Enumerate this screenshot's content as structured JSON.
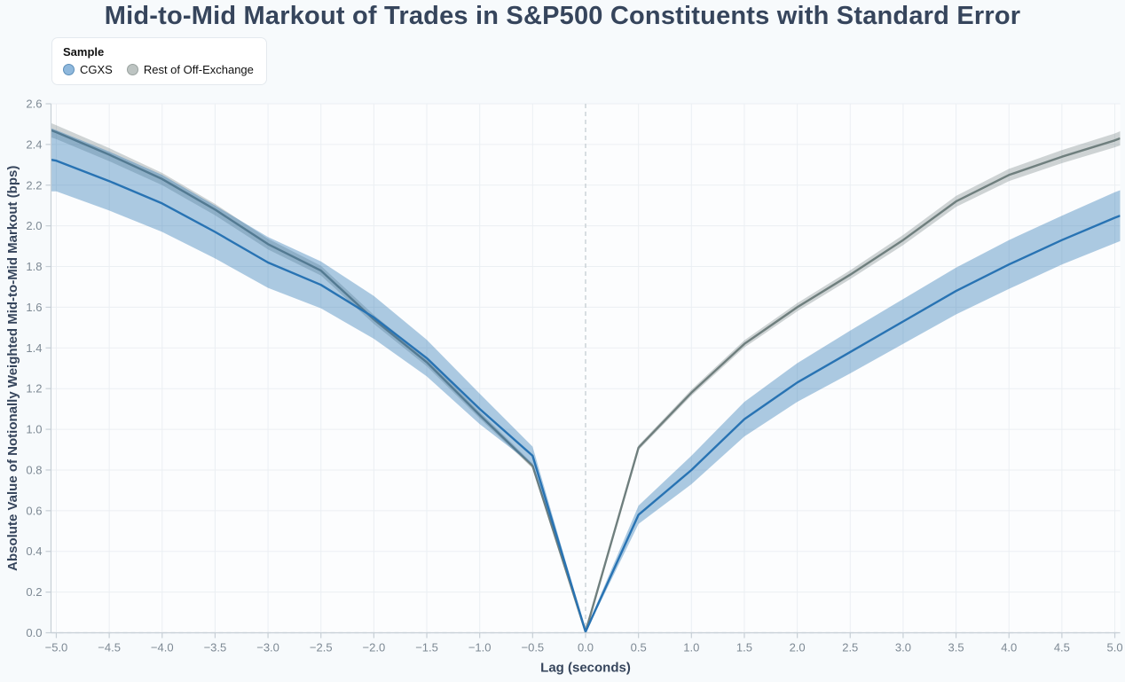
{
  "page": {
    "background": "#f7fafc"
  },
  "legend": {
    "title": "Sample",
    "items": [
      {
        "label": "CGXS",
        "marker_fill": "#8fb8dc",
        "marker_border": "#5d8fba"
      },
      {
        "label": "Rest of Off-Exchange",
        "marker_fill": "#bdc4c2",
        "marker_border": "#99a29f"
      }
    ]
  },
  "chart_data": {
    "type": "line",
    "title": "Mid-to-Mid Markout of Trades in S&P500 Constituents with Standard Error",
    "xlabel": "Lag (seconds)",
    "ylabel": "Absolute Value of Notionally Weighted Mid-to-Mid Markout (bps)",
    "xlim": [
      -5.05,
      5.05
    ],
    "ylim": [
      0.0,
      2.6
    ],
    "x_ticks": [
      -5.0,
      -4.5,
      -4.0,
      -3.5,
      -3.0,
      -2.5,
      -2.0,
      -1.5,
      -1.0,
      -0.5,
      0.0,
      0.5,
      1.0,
      1.5,
      2.0,
      2.5,
      3.0,
      3.5,
      4.0,
      4.5,
      5.0
    ],
    "y_ticks": [
      0.0,
      0.2,
      0.4,
      0.6,
      0.8,
      1.0,
      1.2,
      1.4,
      1.6,
      1.8,
      2.0,
      2.2,
      2.4,
      2.6
    ],
    "grid": true,
    "reference_lines": {
      "x_zero_dashed": true,
      "y_zero_dashed": true
    },
    "legend_position": "top-left",
    "x": [
      -5.05,
      -5.0,
      -4.5,
      -4.0,
      -3.5,
      -3.0,
      -2.5,
      -2.0,
      -1.5,
      -1.0,
      -0.5,
      0.0,
      0.5,
      1.0,
      1.5,
      2.0,
      2.5,
      3.0,
      3.5,
      4.0,
      4.5,
      5.0,
      5.05
    ],
    "series": [
      {
        "name": "Rest of Off-Exchange",
        "line_color": "#6f7f7e",
        "band_color": "rgba(111,127,126,0.33)",
        "values": [
          2.47,
          2.46,
          2.35,
          2.23,
          2.08,
          1.91,
          1.78,
          1.54,
          1.33,
          1.07,
          0.82,
          0.005,
          0.91,
          1.18,
          1.42,
          1.6,
          1.76,
          1.93,
          2.12,
          2.25,
          2.34,
          2.42,
          2.43
        ],
        "stderr_halfwidth": [
          0.035,
          0.034,
          0.032,
          0.03,
          0.028,
          0.026,
          0.024,
          0.022,
          0.02,
          0.016,
          0.012,
          0.004,
          0.012,
          0.015,
          0.018,
          0.02,
          0.022,
          0.025,
          0.027,
          0.03,
          0.032,
          0.034,
          0.035
        ]
      },
      {
        "name": "CGXS",
        "line_color": "#2873b3",
        "band_color": "rgba(40,115,179,0.38)",
        "values": [
          2.325,
          2.32,
          2.22,
          2.11,
          1.97,
          1.82,
          1.71,
          1.55,
          1.35,
          1.1,
          0.87,
          0.005,
          0.58,
          0.8,
          1.05,
          1.23,
          1.38,
          1.53,
          1.68,
          1.81,
          1.93,
          2.04,
          2.05
        ],
        "stderr_halfwidth": [
          0.155,
          0.15,
          0.145,
          0.14,
          0.13,
          0.125,
          0.115,
          0.105,
          0.09,
          0.075,
          0.045,
          0.008,
          0.045,
          0.07,
          0.085,
          0.095,
          0.105,
          0.11,
          0.115,
          0.12,
          0.12,
          0.125,
          0.125
        ]
      }
    ]
  },
  "colors": {
    "plot_bg": "#fcfdfe",
    "grid": "#ebeff3",
    "axis_line": "#c7cfd6",
    "tick_text": "#7d8994",
    "axis_title_text": "#36455c",
    "dashed_line": "#c5cdd2"
  }
}
